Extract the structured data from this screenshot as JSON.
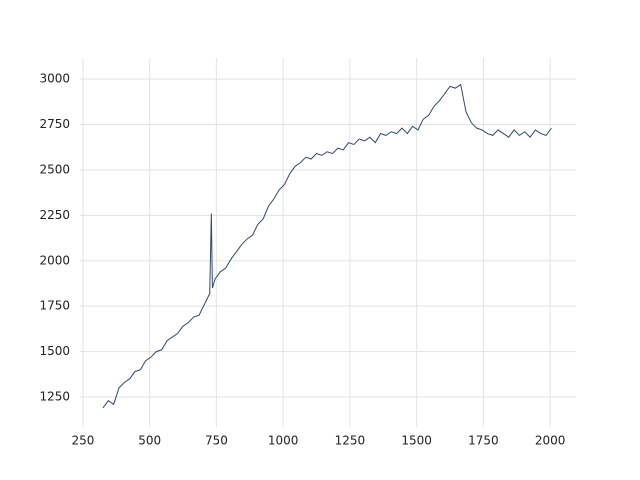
{
  "chart_data": {
    "type": "line",
    "x": [
      325,
      345,
      365,
      385,
      405,
      425,
      445,
      465,
      485,
      505,
      525,
      545,
      565,
      585,
      605,
      625,
      645,
      665,
      685,
      705,
      725,
      731,
      735,
      745,
      765,
      785,
      805,
      825,
      845,
      865,
      885,
      905,
      925,
      945,
      965,
      985,
      1005,
      1025,
      1045,
      1065,
      1085,
      1105,
      1125,
      1145,
      1165,
      1185,
      1205,
      1225,
      1245,
      1265,
      1285,
      1305,
      1325,
      1345,
      1365,
      1385,
      1405,
      1425,
      1445,
      1465,
      1485,
      1505,
      1525,
      1545,
      1565,
      1585,
      1605,
      1625,
      1645,
      1665,
      1685,
      1705,
      1725,
      1745,
      1765,
      1785,
      1805,
      1825,
      1845,
      1865,
      1885,
      1905,
      1925,
      1945,
      1965,
      1985,
      2005
    ],
    "values": [
      1190,
      1230,
      1210,
      1300,
      1330,
      1350,
      1390,
      1400,
      1450,
      1470,
      1500,
      1510,
      1560,
      1580,
      1600,
      1640,
      1660,
      1690,
      1700,
      1760,
      1820,
      2260,
      1850,
      1900,
      1940,
      1960,
      2010,
      2050,
      2090,
      2120,
      2140,
      2200,
      2230,
      2300,
      2340,
      2390,
      2420,
      2480,
      2520,
      2540,
      2570,
      2560,
      2590,
      2580,
      2600,
      2590,
      2620,
      2610,
      2650,
      2640,
      2670,
      2660,
      2680,
      2650,
      2700,
      2690,
      2710,
      2700,
      2730,
      2700,
      2740,
      2720,
      2780,
      2800,
      2850,
      2880,
      2920,
      2960,
      2950,
      2970,
      2820,
      2760,
      2730,
      2720,
      2700,
      2690,
      2720,
      2700,
      2680,
      2720,
      2690,
      2710,
      2680,
      2720,
      2700,
      2690,
      2730
    ],
    "color": "#2e4a6e",
    "xlim": [
      239,
      2097
    ],
    "ylim": [
      1085,
      3116
    ],
    "xticks": [
      250,
      500,
      750,
      1000,
      1250,
      1500,
      1750,
      2000
    ],
    "yticks": [
      1250,
      1500,
      1750,
      2000,
      2250,
      2500,
      2750,
      3000
    ],
    "grid": true
  }
}
